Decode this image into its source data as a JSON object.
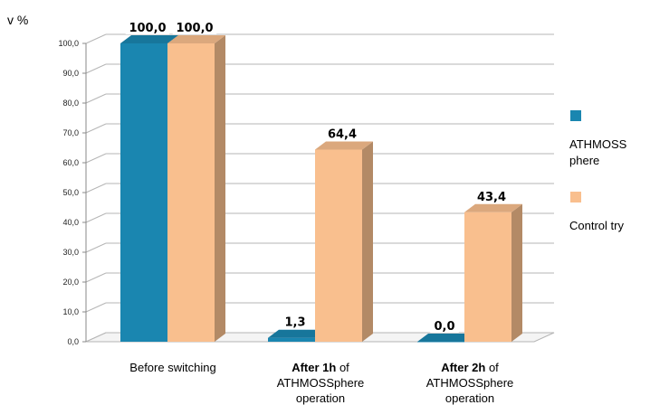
{
  "chart_data": {
    "type": "bar",
    "ylabel": "v %",
    "ylim": [
      0,
      100
    ],
    "yticks": [
      "0,0",
      "10,0",
      "20,0",
      "30,0",
      "40,0",
      "50,0",
      "60,0",
      "70,0",
      "80,0",
      "90,0",
      "100,0"
    ],
    "categories": [
      {
        "lines": [
          [
            {
              "t": "Before switching",
              "b": false
            }
          ]
        ]
      },
      {
        "lines": [
          [
            {
              "t": "After 1h",
              "b": true
            },
            {
              "t": " of",
              "b": false
            }
          ],
          [
            {
              "t": "ATHMOSSphere",
              "b": false
            }
          ],
          [
            {
              "t": "operation",
              "b": false
            }
          ]
        ]
      },
      {
        "lines": [
          [
            {
              "t": "After 2h",
              "b": true
            },
            {
              "t": " of",
              "b": false
            }
          ],
          [
            {
              "t": "ATHMOSSphere",
              "b": false
            }
          ],
          [
            {
              "t": "operation",
              "b": false
            }
          ]
        ]
      }
    ],
    "series": [
      {
        "name": "ATHMOSS phere",
        "legend_lines": [
          "ATHMOSS",
          "phere"
        ],
        "color": "#1a86b0",
        "values": [
          100.0,
          1.3,
          0.0
        ],
        "value_labels": [
          "100,0",
          "1,3",
          "0,0"
        ]
      },
      {
        "name": "Control try",
        "legend_lines": [
          "Control try"
        ],
        "color": "#f9bf8e",
        "values": [
          100.0,
          64.4,
          43.4
        ],
        "value_labels": [
          "100,0",
          "64,4",
          "43,4"
        ]
      }
    ],
    "grid": true,
    "legend_position": "right"
  }
}
